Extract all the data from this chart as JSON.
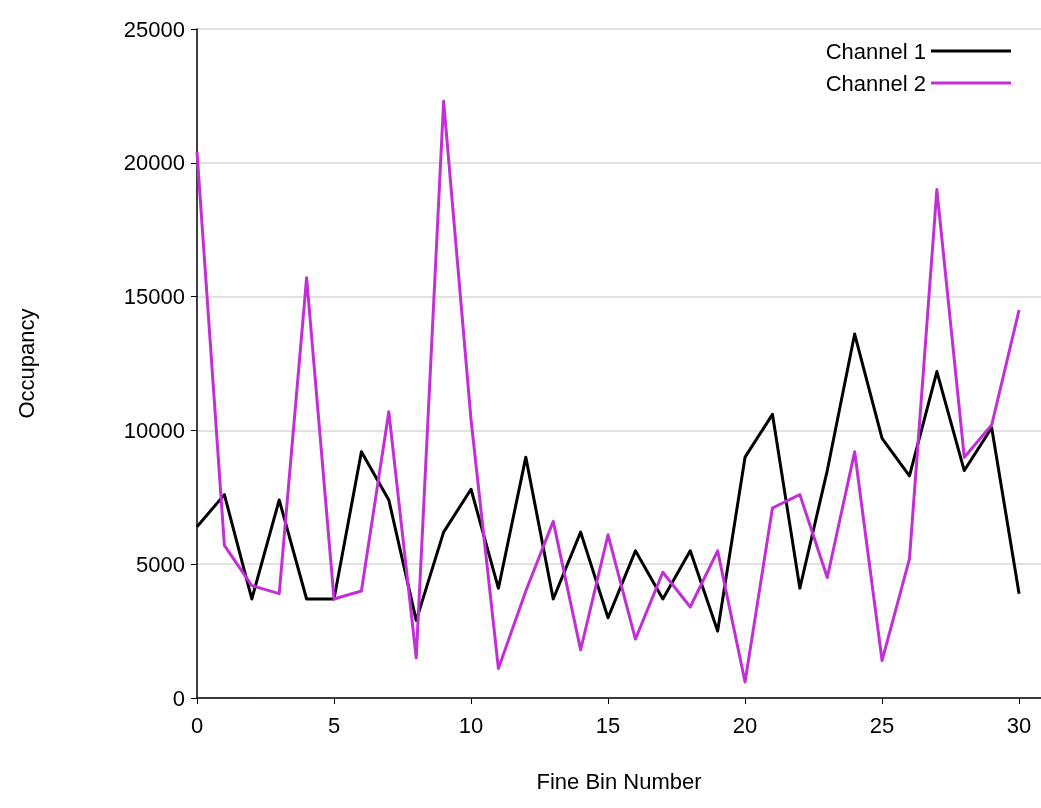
{
  "chart_data": {
    "type": "line",
    "xlabel": "Fine Bin Number",
    "ylabel": "Occupancy",
    "x": [
      0,
      1,
      2,
      3,
      4,
      5,
      6,
      7,
      8,
      9,
      10,
      11,
      12,
      13,
      14,
      15,
      16,
      17,
      18,
      19,
      20,
      21,
      22,
      23,
      24,
      25,
      26,
      27,
      28,
      29,
      30
    ],
    "series": [
      {
        "name": "Channel 1",
        "color": "#000000",
        "values": [
          6400,
          7600,
          3700,
          7400,
          3700,
          3700,
          9200,
          7400,
          2900,
          6200,
          7800,
          4100,
          9000,
          3700,
          6200,
          3000,
          5500,
          3700,
          5500,
          2500,
          9000,
          10600,
          4100,
          8500,
          13600,
          9700,
          8300,
          12200,
          8500,
          10100,
          3900
        ]
      },
      {
        "name": "Channel 2",
        "color": "#c22fd6",
        "values": [
          20400,
          5700,
          4200,
          3900,
          15700,
          3700,
          4000,
          10700,
          1500,
          22300,
          10400,
          1100,
          4000,
          6600,
          1800,
          6100,
          2200,
          4700,
          3400,
          5500,
          600,
          7100,
          7600,
          4500,
          9200,
          1400,
          5200,
          19000,
          9000,
          10200,
          14500
        ]
      }
    ],
    "xlim": [
      0,
      30.8
    ],
    "xticks": [
      0,
      5,
      10,
      15,
      20,
      25,
      30
    ],
    "ylim": [
      0,
      25000
    ],
    "yticks": [
      0,
      5000,
      10000,
      15000,
      20000,
      25000
    ],
    "grid": "y",
    "legend": "top right",
    "marker": "none",
    "line_style": "solid"
  }
}
